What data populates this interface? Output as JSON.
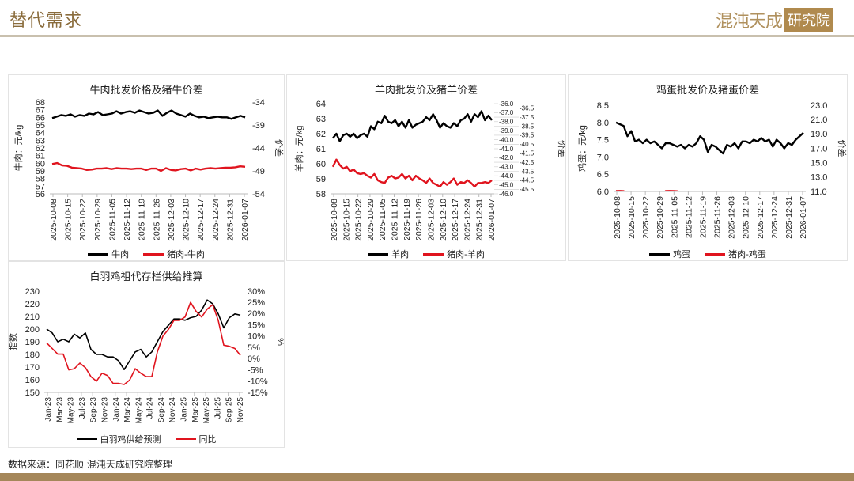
{
  "header": {
    "title": "替代需求",
    "logo_text": "混沌天成",
    "logo_box": "研究院"
  },
  "footer": {
    "source": "数据来源：同花顺 混沌天成研究院整理"
  },
  "colors": {
    "black": "#000000",
    "red": "#e0141e",
    "brand": "#a5875a"
  },
  "chart_data": [
    {
      "type": "line",
      "title": "牛肉批发价格及猪牛价差",
      "ylabel": "牛肉：元/kg",
      "y2label": "价差",
      "ylim": [
        56,
        68
      ],
      "yticks": [
        "68",
        "67",
        "66",
        "65",
        "64",
        "63",
        "62",
        "61",
        "60",
        "59",
        "58",
        "57",
        "56"
      ],
      "y2lim": [
        -54,
        -34
      ],
      "y2ticks": [
        "-34",
        "-39",
        "-44",
        "-49",
        "-54"
      ],
      "xticks": [
        "2025-10-08",
        "2025-10-15",
        "2025-10-22",
        "2025-10-29",
        "2025-11-05",
        "2025-11-12",
        "2025-11-19",
        "2025-11-26",
        "2025-12-03",
        "2025-12-10",
        "2025-12-17",
        "2025-12-24",
        "2025-12-31",
        "2026-01-07"
      ],
      "series": [
        {
          "name": "牛肉",
          "axis": "left",
          "color": "#000000",
          "values": [
            65.9,
            66.1,
            66.3,
            66.2,
            66.4,
            66.1,
            66.3,
            66.2,
            66.5,
            66.4,
            66.7,
            66.3,
            66.4,
            66.5,
            66.8,
            66.5,
            66.7,
            66.8,
            66.6,
            66.9,
            66.7,
            66.5,
            66.6,
            66.9,
            66.2,
            66.6,
            66.9,
            66.5,
            66.3,
            66.1,
            66.5,
            66.2,
            66.0,
            66.1,
            65.9,
            66.0,
            66.1,
            66.0,
            66.0,
            65.8,
            66.0,
            66.2,
            66.0
          ]
        },
        {
          "name": "猪肉-牛肉",
          "axis": "right",
          "color": "#e0141e",
          "values": [
            -47.5,
            -47.3,
            -47.8,
            -47.9,
            -48.3,
            -48.4,
            -48.5,
            -48.8,
            -48.7,
            -48.5,
            -48.5,
            -48.4,
            -48.6,
            -48.4,
            -48.5,
            -48.5,
            -48.6,
            -48.5,
            -48.5,
            -48.8,
            -48.5,
            -48.5,
            -49.0,
            -48.4,
            -48.8,
            -48.9,
            -48.6,
            -48.5,
            -48.9,
            -48.5,
            -48.7,
            -48.5,
            -48.4,
            -48.5,
            -48.4,
            -48.3,
            -48.3,
            -48.2,
            -48.0,
            -48.1
          ]
        }
      ]
    },
    {
      "type": "line",
      "title": "羊肉批发价及猪羊价差",
      "ylabel": "羊肉：元/kg",
      "y2label": "价差",
      "ylim": [
        58,
        64
      ],
      "yticks": [
        "64",
        "63",
        "62",
        "61",
        "60",
        "59",
        "58"
      ],
      "y2lim": [
        -46,
        -36
      ],
      "y2ticks": [
        "-36.0",
        "-36.5",
        "-37.0",
        "-37.5",
        "-38.0",
        "-38.5",
        "-39.0",
        "-39.5",
        "-40.0",
        "-40.5",
        "-41.0",
        "-41.5",
        "-42.0",
        "-42.5",
        "-43.0",
        "-43.5",
        "-44.0",
        "-44.5",
        "-45.0",
        "-45.5",
        "-46.0"
      ],
      "xticks": [
        "2025-10-08",
        "2025-10-15",
        "2025-10-22",
        "2025-10-29",
        "2025-11-05",
        "2025-11-12",
        "2025-11-19",
        "2025-11-26",
        "2025-12-03",
        "2025-12-10",
        "2025-12-17",
        "2025-12-24",
        "2025-12-31",
        "2026-01-07"
      ],
      "series": [
        {
          "name": "羊肉",
          "axis": "left",
          "color": "#000000",
          "values": [
            61.7,
            62.0,
            61.5,
            61.9,
            62.0,
            61.8,
            62.0,
            61.7,
            61.9,
            62.0,
            61.8,
            62.5,
            62.3,
            62.8,
            62.7,
            63.2,
            62.8,
            62.7,
            62.9,
            62.5,
            62.8,
            62.4,
            62.9,
            62.4,
            62.6,
            62.7,
            62.8,
            63.1,
            62.9,
            63.3,
            62.9,
            62.4,
            62.7,
            62.5,
            62.4,
            62.7,
            62.5,
            62.9,
            63.0,
            63.3,
            62.8,
            63.3,
            63.1,
            63.5,
            62.9,
            63.2,
            62.9
          ]
        },
        {
          "name": "猪肉-羊肉",
          "axis": "right",
          "color": "#e0141e",
          "values": [
            -43.0,
            -42.2,
            -42.8,
            -43.2,
            -43.0,
            -43.5,
            -43.3,
            -43.7,
            -43.8,
            -43.7,
            -44.0,
            -44.2,
            -43.8,
            -44.5,
            -44.7,
            -44.8,
            -44.2,
            -44.0,
            -44.3,
            -44.2,
            -43.8,
            -44.3,
            -44.0,
            -44.5,
            -44.0,
            -44.3,
            -44.5,
            -44.8,
            -44.3,
            -44.8,
            -45.0,
            -45.2,
            -44.7,
            -45.0,
            -44.7,
            -44.3,
            -45.0,
            -44.7,
            -44.8,
            -44.5,
            -44.8,
            -45.2,
            -44.8,
            -44.8,
            -44.7,
            -44.8,
            -44.5
          ]
        }
      ]
    },
    {
      "type": "line",
      "title": "鸡蛋批发价及猪蛋价差",
      "ylabel": "鸡蛋：元/kg",
      "y2label": "价差",
      "ylim": [
        6,
        8.5
      ],
      "yticks": [
        "8.5",
        "8.0",
        "7.5",
        "7.0",
        "6.5",
        "6.0"
      ],
      "y2lim": [
        11,
        23
      ],
      "y2ticks": [
        "23.0",
        "21.0",
        "19.0",
        "17.0",
        "15.0",
        "13.0",
        "11.0"
      ],
      "xticks": [
        "2025-10-08",
        "2025-10-15",
        "2025-10-22",
        "2025-10-29",
        "2025-11-05",
        "2025-11-12",
        "2025-11-19",
        "2025-11-26",
        "2025-12-03",
        "2025-12-10",
        "2025-12-17",
        "2025-12-24",
        "2025-12-31",
        "2026-01-07"
      ],
      "series": [
        {
          "name": "鸡蛋",
          "axis": "left",
          "color": "#000000",
          "values": [
            8.0,
            7.95,
            7.9,
            7.6,
            7.75,
            7.45,
            7.5,
            7.4,
            7.5,
            7.4,
            7.45,
            7.35,
            7.25,
            7.4,
            7.4,
            7.35,
            7.3,
            7.35,
            7.25,
            7.35,
            7.3,
            7.4,
            7.6,
            7.5,
            7.15,
            7.35,
            7.3,
            7.2,
            7.1,
            7.35,
            7.3,
            7.4,
            7.25,
            7.45,
            7.45,
            7.4,
            7.5,
            7.45,
            7.55,
            7.45,
            7.5,
            7.3,
            7.5,
            7.4,
            7.25,
            7.4,
            7.35,
            7.5,
            7.6,
            7.7
          ]
        },
        {
          "name": "猪肉-鸡蛋",
          "axis": "right",
          "color": "#e0141e",
          "values": [
            11.05,
            11.08,
            11.04,
            10.6,
            10.5,
            10.5,
            10.5,
            10.5,
            10.5,
            10.5,
            10.5,
            10.5,
            10.5,
            11.05,
            11.08,
            11.06,
            11.03,
            10.5,
            10.5,
            10.5,
            10.5,
            10.5,
            10.5,
            10.5,
            10.5,
            10.5,
            10.5,
            10.5,
            10.5,
            10.5,
            10.5,
            10.5,
            10.5,
            10.5,
            10.5,
            10.5,
            10.5,
            10.5,
            10.5,
            10.5,
            10.5,
            10.5,
            10.5,
            10.5,
            10.5,
            10.5,
            10.5,
            10.5,
            10.5,
            10.5
          ]
        }
      ]
    },
    {
      "type": "line",
      "title": "白羽鸡祖代存栏供给推算",
      "ylabel": "指数",
      "y2label": "%",
      "ylim": [
        150,
        230
      ],
      "yticks": [
        "230",
        "220",
        "210",
        "200",
        "190",
        "180",
        "170",
        "160",
        "150"
      ],
      "y2lim": [
        -15,
        30
      ],
      "y2ticks": [
        "30%",
        "25%",
        "20%",
        "15%",
        "10%",
        "5%",
        "0%",
        "-5%",
        "-10%",
        "-15%"
      ],
      "xticks": [
        "Jan-23",
        "Mar-23",
        "May-23",
        "Jul-23",
        "Sep-23",
        "Nov-23",
        "Jan-24",
        "Mar-24",
        "May-24",
        "Jul-24",
        "Sep-24",
        "Nov-24",
        "Jan-25",
        "Mar-25",
        "May-25",
        "Jul-25",
        "Sep-25",
        "Nov-25"
      ],
      "series": [
        {
          "name": "白羽鸡供给预测",
          "axis": "left",
          "color": "#000000",
          "values": [
            200,
            197,
            190,
            192,
            190,
            196,
            193,
            197,
            184,
            180,
            180,
            178,
            178,
            175,
            168,
            175,
            182,
            184,
            178,
            182,
            190,
            198,
            203,
            208,
            208,
            207,
            209,
            210,
            215,
            223,
            220,
            212,
            201,
            209,
            212,
            211
          ]
        },
        {
          "name": "同比",
          "axis": "right",
          "color": "#e0141e",
          "values": [
            7,
            4.5,
            2,
            2,
            -5,
            -4.5,
            -2,
            -4,
            -8,
            -10,
            -6.5,
            -7.5,
            -11,
            -11,
            -11.5,
            -9.5,
            -4.5,
            -6.5,
            -8,
            -8,
            3,
            10,
            13,
            17,
            17,
            18.5,
            25,
            21,
            18.5,
            22,
            24,
            17,
            6,
            5.5,
            4.5,
            1.5
          ]
        }
      ]
    }
  ]
}
